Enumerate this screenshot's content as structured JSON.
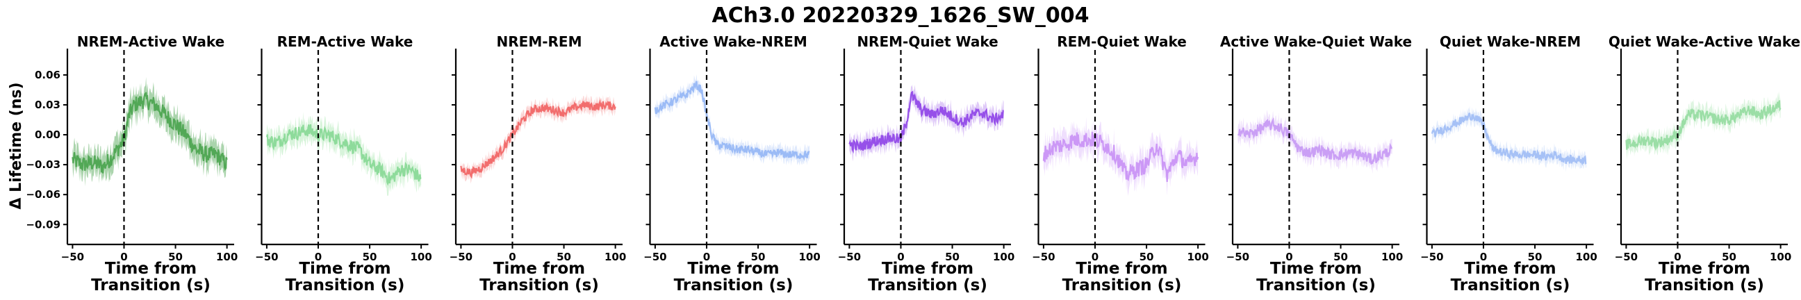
{
  "figure": {
    "title": "ACh3.0 20220329_1626_SW_004"
  },
  "chart_data": {
    "type": "line",
    "shared_ylabel": "Δ Lifetime (ns)",
    "xlabel": "Time from Transition (s)",
    "xlabel_lines": [
      "Time from",
      "Transition (s)"
    ],
    "xlim": [
      -55,
      107
    ],
    "ylim": [
      -0.11,
      0.085
    ],
    "xticks": [
      -50,
      0,
      50,
      100
    ],
    "yticks": [
      -0.09,
      -0.06,
      -0.03,
      0.0,
      0.03,
      0.06
    ],
    "ytick_labels": [
      "−0.09",
      "−0.06",
      "−0.03",
      "0.00",
      "0.03",
      "0.06"
    ],
    "xtick_labels": [
      "−50",
      "0",
      "50",
      "100"
    ],
    "transition_line_x": 0,
    "grid": false,
    "panels": [
      {
        "title": "NREM-Active Wake",
        "color": "#43a047",
        "band_color": "#43a047",
        "x": [
          -50,
          -40,
          -30,
          -20,
          -10,
          0,
          5,
          10,
          20,
          30,
          40,
          50,
          60,
          70,
          80,
          90,
          100
        ],
        "y": [
          -0.025,
          -0.03,
          -0.028,
          -0.032,
          -0.02,
          -0.005,
          0.02,
          0.03,
          0.035,
          0.03,
          0.02,
          0.01,
          0.0,
          -0.015,
          -0.02,
          -0.02,
          -0.03
        ],
        "band": 0.012
      },
      {
        "title": "REM-Active Wake",
        "color": "#81d68f",
        "band_color": "#a8e6b0",
        "x": [
          -50,
          -40,
          -30,
          -20,
          -10,
          0,
          10,
          20,
          30,
          40,
          50,
          60,
          70,
          80,
          90,
          100
        ],
        "y": [
          -0.005,
          -0.008,
          0.0,
          0.002,
          0.005,
          0.0,
          0.0,
          -0.005,
          -0.01,
          -0.015,
          -0.03,
          -0.035,
          -0.045,
          -0.035,
          -0.035,
          -0.045
        ],
        "band": 0.01
      },
      {
        "title": "NREM-REM",
        "color": "#f05b5b",
        "band_color": "#f7a0a0",
        "x": [
          -50,
          -40,
          -30,
          -20,
          -10,
          0,
          10,
          20,
          30,
          40,
          50,
          60,
          70,
          80,
          90,
          100
        ],
        "y": [
          -0.035,
          -0.038,
          -0.033,
          -0.025,
          -0.015,
          0.0,
          0.015,
          0.025,
          0.027,
          0.025,
          0.022,
          0.027,
          0.03,
          0.028,
          0.03,
          0.028
        ],
        "band": 0.006
      },
      {
        "title": "Active Wake-NREM",
        "color": "#8fb3f5",
        "band_color": "#b8cef8",
        "x": [
          -50,
          -40,
          -30,
          -20,
          -10,
          -5,
          0,
          5,
          10,
          20,
          30,
          40,
          50,
          60,
          70,
          80,
          90,
          100
        ],
        "y": [
          0.025,
          0.03,
          0.035,
          0.04,
          0.05,
          0.045,
          0.02,
          0.0,
          -0.01,
          -0.012,
          -0.015,
          -0.015,
          -0.018,
          -0.02,
          -0.018,
          -0.02,
          -0.02,
          -0.02
        ],
        "band": 0.006
      },
      {
        "title": "NREM-Quiet Wake",
        "color": "#8a3be6",
        "band_color": "#b98af0",
        "x": [
          -50,
          -40,
          -30,
          -20,
          -10,
          0,
          5,
          10,
          20,
          30,
          40,
          50,
          60,
          70,
          80,
          90,
          100
        ],
        "y": [
          -0.01,
          -0.012,
          -0.008,
          -0.005,
          -0.003,
          -0.005,
          0.01,
          0.04,
          0.025,
          0.02,
          0.025,
          0.018,
          0.012,
          0.02,
          0.022,
          0.015,
          0.02
        ],
        "band": 0.008
      },
      {
        "title": "REM-Quiet Wake",
        "color": "#c58cf5",
        "band_color": "#dcb8fa",
        "x": [
          -50,
          -40,
          -30,
          -20,
          -10,
          0,
          10,
          20,
          30,
          40,
          50,
          60,
          70,
          80,
          90,
          100
        ],
        "y": [
          -0.02,
          -0.012,
          -0.01,
          -0.005,
          -0.005,
          -0.005,
          -0.01,
          -0.02,
          -0.04,
          -0.035,
          -0.03,
          -0.01,
          -0.04,
          -0.02,
          -0.03,
          -0.02
        ],
        "band": 0.012
      },
      {
        "title": "Active Wake-Quiet Wake",
        "color": "#c393f3",
        "band_color": "#dcbdf8",
        "x": [
          -50,
          -40,
          -30,
          -20,
          -10,
          0,
          10,
          20,
          30,
          40,
          50,
          60,
          70,
          80,
          90,
          100
        ],
        "y": [
          0.005,
          0.0,
          0.005,
          0.01,
          0.008,
          0.0,
          -0.015,
          -0.018,
          -0.015,
          -0.02,
          -0.02,
          -0.018,
          -0.02,
          -0.025,
          -0.02,
          -0.015
        ],
        "band": 0.008
      },
      {
        "title": "Quiet Wake-NREM",
        "color": "#9bbaf5",
        "band_color": "#c2d4f9",
        "x": [
          -50,
          -40,
          -30,
          -20,
          -10,
          -5,
          0,
          5,
          10,
          20,
          30,
          40,
          50,
          60,
          70,
          80,
          90,
          100
        ],
        "y": [
          0.0,
          0.005,
          0.01,
          0.015,
          0.02,
          0.015,
          0.01,
          -0.005,
          -0.015,
          -0.018,
          -0.02,
          -0.02,
          -0.02,
          -0.022,
          -0.02,
          -0.025,
          -0.025,
          -0.025
        ],
        "band": 0.006
      },
      {
        "title": "Quiet Wake-Active Wake",
        "color": "#8fd99b",
        "band_color": "#b5e8bd",
        "x": [
          -50,
          -40,
          -30,
          -20,
          -10,
          0,
          10,
          20,
          30,
          40,
          50,
          60,
          70,
          80,
          90,
          100
        ],
        "y": [
          -0.01,
          -0.008,
          -0.005,
          -0.008,
          -0.005,
          0.0,
          0.02,
          0.02,
          0.018,
          0.015,
          0.015,
          0.02,
          0.025,
          0.02,
          0.025,
          0.03
        ],
        "band": 0.008
      }
    ]
  }
}
